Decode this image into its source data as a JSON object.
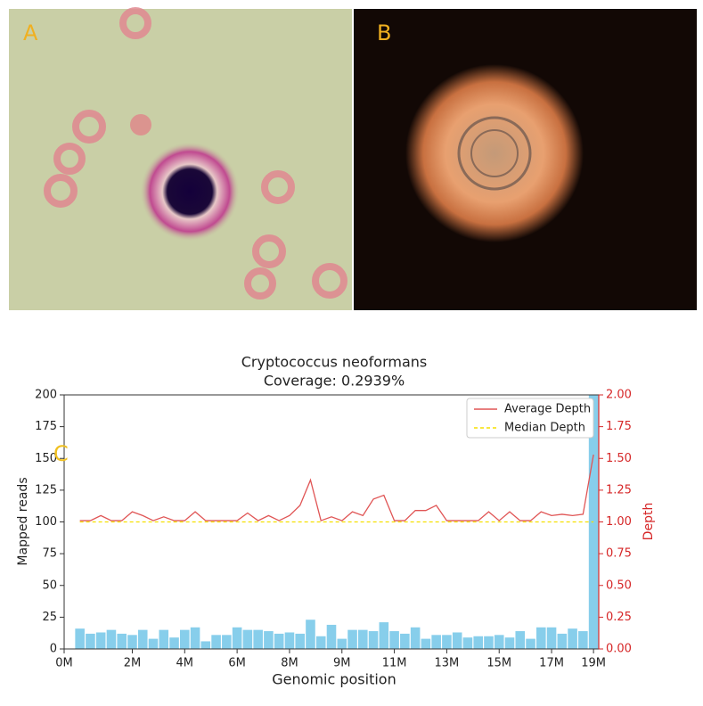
{
  "panels": {
    "a": "A",
    "b": "B",
    "c": "C"
  },
  "chart_data": {
    "type": "bar",
    "title": "Cryptococcus neoformans",
    "subtitle": "Coverage: 0.2939%",
    "xlabel": "Genomic position",
    "ylabel": "Mapped reads",
    "y2label": "Depth",
    "x": [
      0,
      1,
      2,
      3,
      4,
      5,
      6,
      7,
      8,
      9,
      10,
      11,
      12,
      13,
      14,
      15,
      16,
      17,
      18,
      19,
      20,
      21,
      22,
      23,
      24,
      25,
      26,
      27,
      28,
      29,
      30,
      31,
      32,
      33,
      34,
      35,
      36,
      37,
      38,
      39,
      40,
      41,
      42,
      43,
      44,
      45,
      46,
      47,
      48,
      49
    ],
    "values": [
      16,
      12,
      13,
      15,
      12,
      11,
      15,
      8,
      15,
      9,
      15,
      17,
      6,
      11,
      11,
      17,
      15,
      15,
      14,
      12,
      13,
      12,
      23,
      10,
      19,
      8,
      15,
      15,
      14,
      21,
      14,
      12,
      17,
      8,
      11,
      11,
      13,
      9,
      10,
      10,
      11,
      9,
      14,
      8,
      17,
      17,
      12,
      16,
      14,
      200
    ],
    "color": "#87ceeb",
    "series": [
      {
        "name": "Average Depth",
        "color": "#e05555",
        "axis": "y2",
        "type": "line",
        "values": [
          1.01,
          1.01,
          1.05,
          1.01,
          1.01,
          1.08,
          1.05,
          1.01,
          1.04,
          1.01,
          1.01,
          1.08,
          1.01,
          1.01,
          1.01,
          1.01,
          1.07,
          1.01,
          1.05,
          1.01,
          1.05,
          1.13,
          1.33,
          1.01,
          1.04,
          1.01,
          1.08,
          1.05,
          1.18,
          1.21,
          1.01,
          1.01,
          1.09,
          1.09,
          1.13,
          1.01,
          1.01,
          1.01,
          1.01,
          1.08,
          1.01,
          1.08,
          1.01,
          1.01,
          1.08,
          1.05,
          1.06,
          1.05,
          1.06,
          1.53
        ]
      },
      {
        "name": "Median Depth",
        "color": "#f5e000",
        "axis": "y2",
        "type": "hline",
        "value": 1.0
      }
    ],
    "xlim": [
      -1.5,
      49.5
    ],
    "xticks": [
      {
        "value": -1.5,
        "label": "0M"
      },
      {
        "value": 5,
        "label": "2M"
      },
      {
        "value": 10,
        "label": "4M"
      },
      {
        "value": 15,
        "label": "6M"
      },
      {
        "value": 20,
        "label": "8M"
      },
      {
        "value": 25,
        "label": "9M"
      },
      {
        "value": 30,
        "label": "11M"
      },
      {
        "value": 35,
        "label": "13M"
      },
      {
        "value": 40,
        "label": "15M"
      },
      {
        "value": 45,
        "label": "17M"
      },
      {
        "value": 49,
        "label": "19M"
      }
    ],
    "ylim": [
      0,
      200
    ],
    "yticks": [
      0,
      25,
      50,
      75,
      100,
      125,
      150,
      175,
      200
    ],
    "y2lim": [
      0,
      2
    ],
    "y2ticks": [
      {
        "value": 0,
        "label": "0.00"
      },
      {
        "value": 0.25,
        "label": "0.25"
      },
      {
        "value": 0.5,
        "label": "0.50"
      },
      {
        "value": 0.75,
        "label": "0.75"
      },
      {
        "value": 1,
        "label": "1.00"
      },
      {
        "value": 1.25,
        "label": "1.25"
      },
      {
        "value": 1.5,
        "label": "1.50"
      },
      {
        "value": 1.75,
        "label": "1.75"
      },
      {
        "value": 2,
        "label": "2.00"
      }
    ],
    "y2color": "#d62728",
    "grid": false,
    "legend": "upper right"
  }
}
